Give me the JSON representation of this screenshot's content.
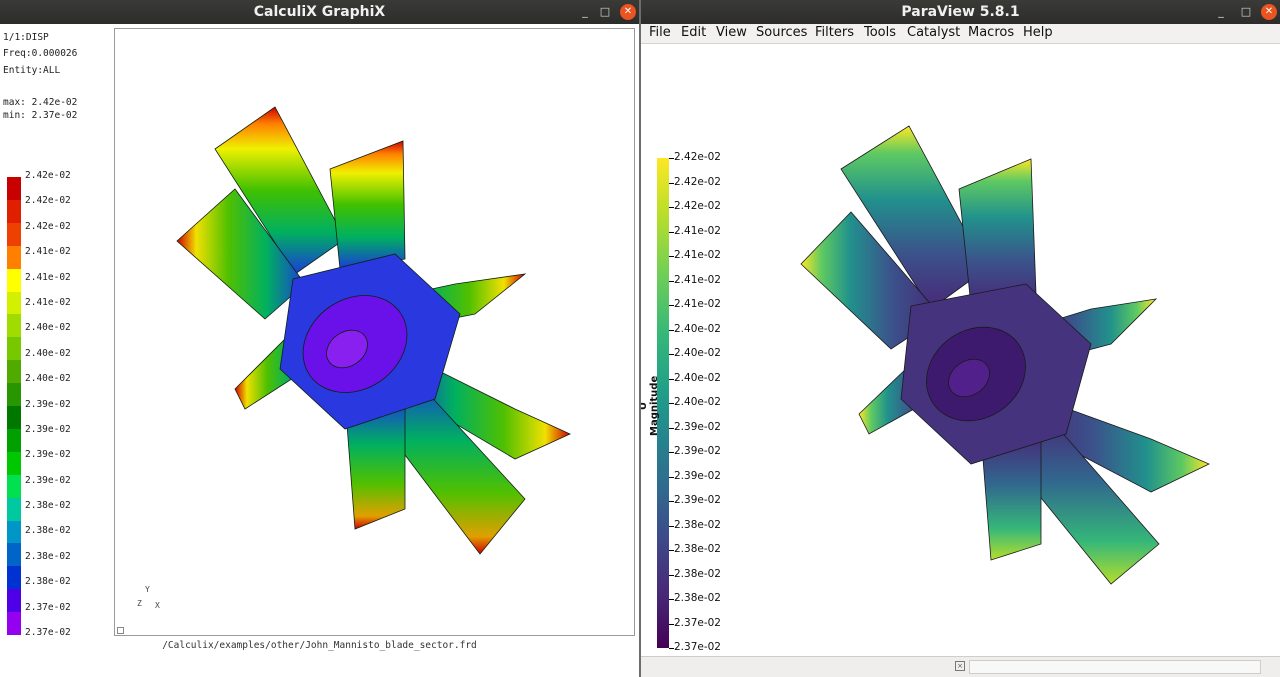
{
  "cgx": {
    "title": "CalculiX GraphiX",
    "info_step": "1/1:DISP",
    "info_freq": "Freq:0.000026",
    "info_entity": "Entity:ALL",
    "info_max": "max: 2.42e-02",
    "info_min": "min: 2.37e-02",
    "legend_labels": [
      "2.42e-02",
      "2.42e-02",
      "2.42e-02",
      "2.41e-02",
      "2.41e-02",
      "2.41e-02",
      "2.40e-02",
      "2.40e-02",
      "2.40e-02",
      "2.39e-02",
      "2.39e-02",
      "2.39e-02",
      "2.39e-02",
      "2.38e-02",
      "2.38e-02",
      "2.38e-02",
      "2.38e-02",
      "2.37e-02",
      "2.37e-02"
    ],
    "legend_colors": [
      "#c80000",
      "#e01e00",
      "#ee4000",
      "#ff8000",
      "#ffff00",
      "#d2f000",
      "#a0dc00",
      "#78c800",
      "#50aa00",
      "#289600",
      "#007800",
      "#00a000",
      "#00c800",
      "#00e050",
      "#00c8a0",
      "#0096c8",
      "#0064c8",
      "#0032d2",
      "#5000e6",
      "#9400f0"
    ],
    "triad_y": "Y",
    "triad_z": "Z",
    "triad_x": "X",
    "file_path": "/Calculix/examples/other/John_Mannisto_blade_sector.frd"
  },
  "pv": {
    "title": "ParaView 5.8.1",
    "menu": [
      "File",
      "Edit",
      "View",
      "Sources",
      "Filters",
      "Tools",
      "Catalyst",
      "Macros",
      "Help"
    ],
    "colorbar_title": "U Magnitude",
    "colorbar_labels": [
      "2.42e-02",
      "2.42e-02",
      "2.42e-02",
      "2.41e-02",
      "2.41e-02",
      "2.41e-02",
      "2.41e-02",
      "2.40e-02",
      "2.40e-02",
      "2.40e-02",
      "2.40e-02",
      "2.39e-02",
      "2.39e-02",
      "2.39e-02",
      "2.39e-02",
      "2.38e-02",
      "2.38e-02",
      "2.38e-02",
      "2.38e-02",
      "2.37e-02",
      "2.37e-02"
    ]
  },
  "window_controls": {
    "minimize": "_",
    "maximize": "□",
    "close": "✕"
  },
  "colors": {
    "titlebar": "#2f2f2d",
    "close_button": "#e95420",
    "viridis_low": "#440154",
    "viridis_high": "#fde725"
  }
}
